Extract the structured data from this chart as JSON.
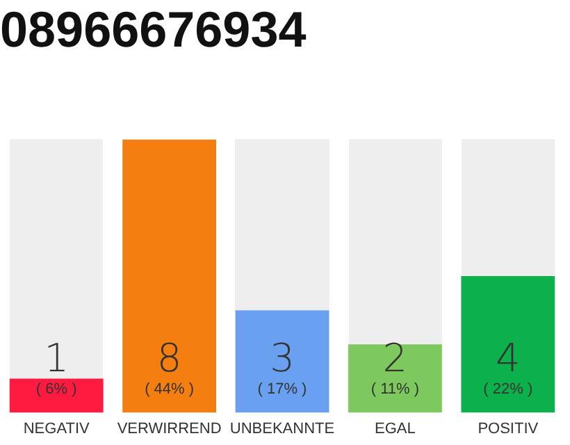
{
  "chart_data": {
    "type": "bar",
    "title": "08966676934",
    "categories": [
      "NEGATIV",
      "VERWIRREND",
      "UNBEKANNTE",
      "EGAL",
      "POSITIV"
    ],
    "values": [
      1,
      8,
      3,
      2,
      4
    ],
    "colors": [
      "#ff1a40",
      "#f47f10",
      "#6aa0f0",
      "#7dc95e",
      "#0db14b"
    ],
    "ylim": [
      0,
      8
    ],
    "tick_labels": "x",
    "grid": false,
    "legend": false,
    "data_labels": true,
    "annotations": [
      {
        "text": "( 6% )",
        "x": "NEGATIV",
        "y": 0
      },
      {
        "text": "( 44% )",
        "x": "VERWIRREND",
        "y": 0
      },
      {
        "text": "( 17% )",
        "x": "UNBEKANNTE",
        "y": 0
      },
      {
        "text": "( 11% )",
        "x": "EGAL",
        "y": 0
      },
      {
        "text": "( 22% )",
        "x": "POSITIV",
        "y": 0
      }
    ]
  }
}
